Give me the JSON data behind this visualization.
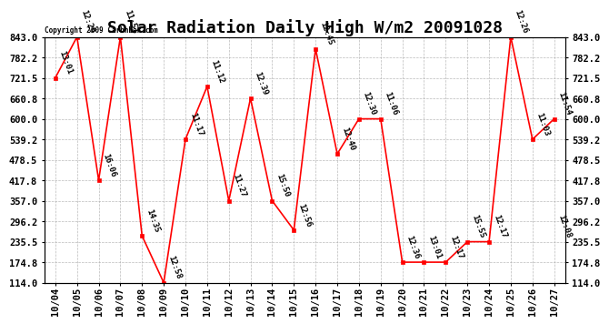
{
  "title": "Solar Radiation Daily High W/m2 20091028",
  "copyright": "Copyright 2009 Carbnbak.com",
  "dates": [
    "10/04",
    "10/05",
    "10/06",
    "10/07",
    "10/08",
    "10/09",
    "10/10",
    "10/11",
    "10/12",
    "10/13",
    "10/14",
    "10/15",
    "10/16",
    "10/17",
    "10/18",
    "10/19",
    "10/20",
    "10/21",
    "10/22",
    "10/23",
    "10/24",
    "10/25",
    "10/26",
    "10/27"
  ],
  "values": [
    721.5,
    843.0,
    417.8,
    843.0,
    253.0,
    114.0,
    539.2,
    696.0,
    357.0,
    660.8,
    357.0,
    270.0,
    808.0,
    496.0,
    600.0,
    600.0,
    174.8,
    174.8,
    174.8,
    235.5,
    235.5,
    843.0,
    539.2,
    600.0
  ],
  "times": [
    "13:01",
    "12:29",
    "16:06",
    "11:51",
    "14:35",
    "12:58",
    "11:17",
    "11:12",
    "11:27",
    "12:39",
    "15:50",
    "12:56",
    "12:45",
    "12:40",
    "12:30",
    "11:06",
    "12:36",
    "13:01",
    "12:17",
    "15:55",
    "12:17",
    "12:26",
    "11:03",
    "11:54"
  ],
  "low_times": [
    "",
    "",
    "",
    "",
    "",
    "",
    "",
    "",
    "",
    "",
    "",
    "",
    "",
    "",
    "",
    "",
    "",
    "",
    "",
    "",
    "",
    "",
    "",
    "12:08"
  ],
  "low_values": [
    null,
    null,
    null,
    null,
    null,
    null,
    null,
    null,
    null,
    null,
    null,
    null,
    null,
    null,
    null,
    null,
    null,
    null,
    null,
    null,
    null,
    null,
    null,
    235.5
  ],
  "ylim": [
    114.0,
    843.0
  ],
  "yticks": [
    114.0,
    174.8,
    235.5,
    296.2,
    357.0,
    417.8,
    478.5,
    539.2,
    600.0,
    660.8,
    721.5,
    782.2,
    843.0
  ],
  "line_color": "#ff0000",
  "marker_color": "#ff0000",
  "bg_color": "#ffffff",
  "grid_color": "#aaaaaa",
  "title_fontsize": 13,
  "tick_fontsize": 7.5
}
